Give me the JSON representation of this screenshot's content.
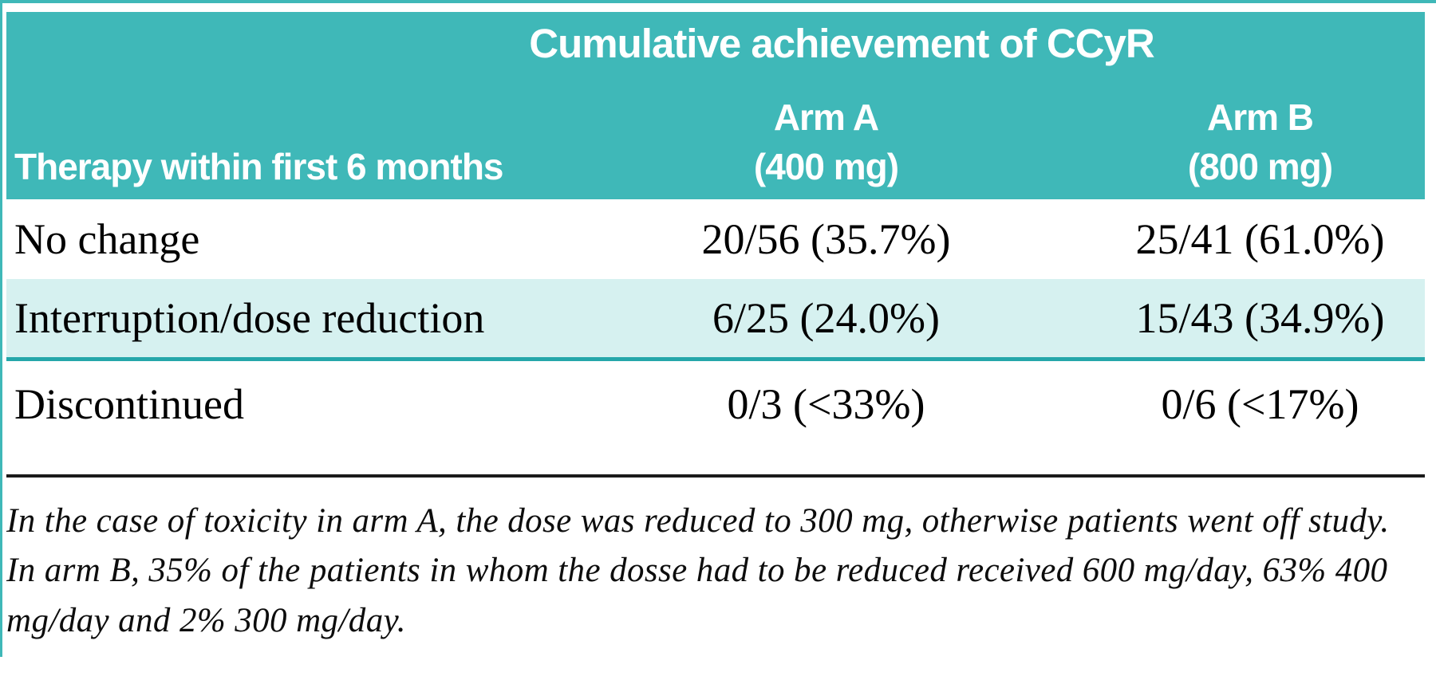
{
  "table": {
    "header": {
      "title": "Cumulative achievement of CCyR",
      "row_header": "Therapy within first 6 months",
      "col_a_line1": "Arm A",
      "col_a_line2": "(400 mg)",
      "col_b_line1": "Arm B",
      "col_b_line2": "(800 mg)"
    },
    "rows": [
      {
        "label": "No change",
        "arm_a": "20/56 (35.7%)",
        "arm_b": "25/41 (61.0%)"
      },
      {
        "label": "Interruption/dose reduction",
        "arm_a": "6/25 (24.0%)",
        "arm_b": "15/43 (34.9%)"
      },
      {
        "label": "Discontinued",
        "arm_a": "0/3 (<33%)",
        "arm_b": "0/6 (<17%)"
      }
    ]
  },
  "footnote": "In the case of toxicity in arm A, the dose was reduced to 300 mg, otherwise patients went off study. In arm B, 35% of the patients in whom the dosse had to be reduced received 600 mg/day, 63% 400 mg/day and 2% 300 mg/day.",
  "chart_data": {
    "type": "table",
    "title": "Cumulative achievement of CCyR",
    "columns": [
      "Therapy within first 6 months",
      "Arm A (400 mg)",
      "Arm B (800 mg)"
    ],
    "rows": [
      [
        "No change",
        "20/56 (35.7%)",
        "25/41 (61.0%)"
      ],
      [
        "Interruption/dose reduction",
        "6/25 (24.0%)",
        "15/43 (34.9%)"
      ],
      [
        "Discontinued",
        "0/3 (<33%)",
        "0/6 (<17%)"
      ]
    ],
    "numeric": {
      "categories": [
        "No change",
        "Interruption/dose reduction",
        "Discontinued"
      ],
      "series": [
        {
          "name": "Arm A (400 mg)",
          "achieved": [
            20,
            6,
            0
          ],
          "total": [
            56,
            25,
            3
          ],
          "percent_label": [
            "35.7%",
            "24.0%",
            "<33%"
          ]
        },
        {
          "name": "Arm B (800 mg)",
          "achieved": [
            25,
            15,
            0
          ],
          "total": [
            41,
            43,
            6
          ],
          "percent_label": [
            "61.0%",
            "34.9%",
            "<17%"
          ]
        }
      ]
    },
    "footnote": "In the case of toxicity in arm A, the dose was reduced to 300 mg, otherwise patients went off study. In arm B, 35% of the patients in whom the dosse had to be reduced received 600 mg/day, 63% 400 mg/day and 2% 300 mg/day.",
    "highlighted_row": "Interruption/dose reduction"
  },
  "colors": {
    "header_teal": "#3fb8b8",
    "row_highlight": "#d6f1f0",
    "highlight_border": "#25a7aa",
    "rule_black": "#1a1a1a"
  }
}
